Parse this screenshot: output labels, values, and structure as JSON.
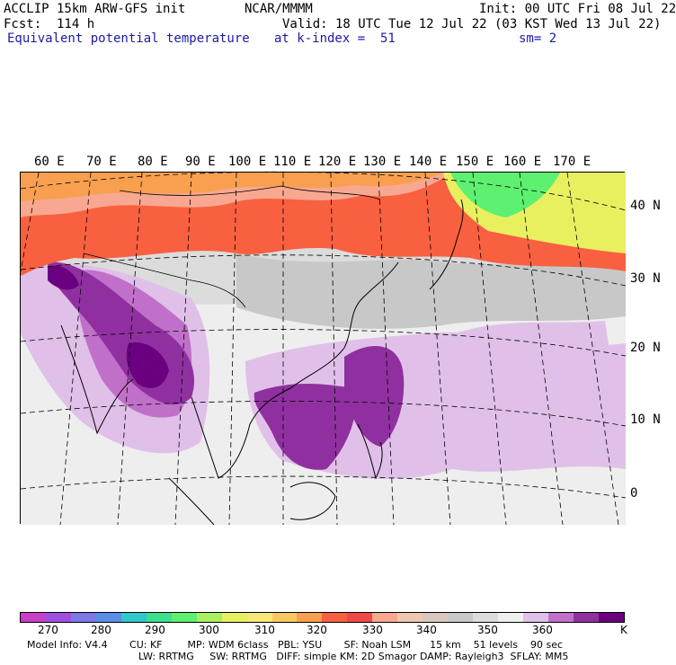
{
  "header": {
    "model_title": "ACCLIP 15km ARW-GFS init",
    "org": "NCAR/MMMM",
    "init": "Init: 00 UTC Fri 08 Jul 22",
    "fcst": "Fcst:  114 h",
    "valid": "Valid: 18 UTC Tue 12 Jul 22 (03 KST Wed 13 Jul 22)",
    "field": "Equivalent potential temperature",
    "level": "at k-index =  51",
    "smooth": "sm= 2"
  },
  "longitude_labels": [
    "60 E",
    "70 E",
    "80 E",
    "90 E",
    "100 E",
    "110 E",
    "120 E",
    "130 E",
    "140 E",
    "150 E",
    "160 E",
    "170 E"
  ],
  "latitude_labels": [
    "40 N",
    "30 N",
    "20 N",
    "10 N",
    "0"
  ],
  "colorbar": {
    "unit": "K",
    "tick_labels": [
      "270",
      "280",
      "290",
      "300",
      "310",
      "320",
      "330",
      "340",
      "350",
      "360"
    ],
    "colors": [
      "#c83fc8",
      "#a050e0",
      "#7c78e8",
      "#5a8ee8",
      "#30c8c8",
      "#3ce08c",
      "#5ef070",
      "#a8f060",
      "#e8f060",
      "#f8e878",
      "#f8c860",
      "#f8a050",
      "#f86040",
      "#f04848",
      "#f8a890",
      "#f0c8b0",
      "#d8c8c0",
      "#c8c8c8",
      "#dcdcdc",
      "#f0f0f0",
      "#e0c0e8",
      "#c070c8",
      "#9030a0",
      "#6a0080"
    ]
  },
  "map_colors": {
    "ocean_gray": "#dcdcdc",
    "light_gray": "#eeeeee",
    "mid_gray": "#c8c8c8",
    "light_purple": "#e0c0e8",
    "mid_purple": "#c070c8",
    "purple": "#9030a0",
    "dark_purple": "#6a0080",
    "red": "#f86040",
    "orange": "#f8a050",
    "salmon": "#f8a890",
    "yellow": "#e8f060",
    "green": "#5ef070"
  },
  "model_info": {
    "line1": "Model Info: V4.4       CU: KF        MP: WDM 6class   PBL: YSU       SF: Noah LSM      15 km    51 levels    90 sec",
    "line2": "LW: RRTMG     SW: RRTMG   DIFF: simple KM: 2D Smagor DAMP: Rayleigh3  SFLAY: MM5"
  }
}
